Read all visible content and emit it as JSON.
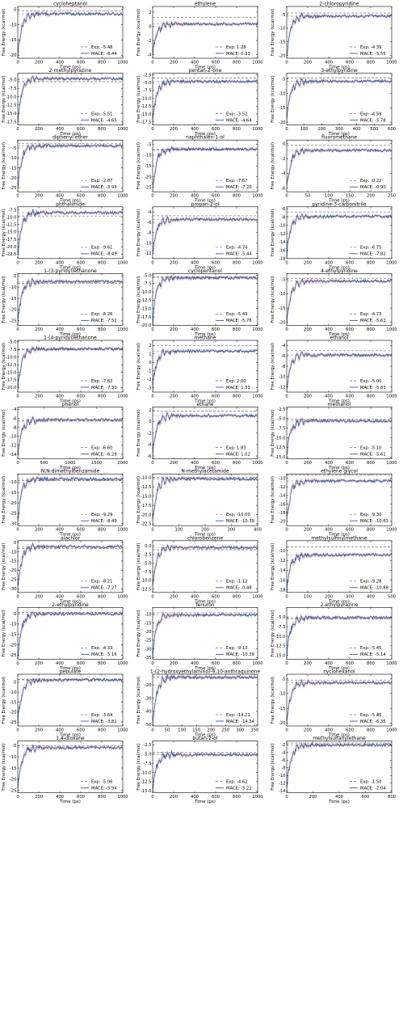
{
  "figure": {
    "xlabel": "Time (ps)",
    "ylabel": "Free Energy (kcal/mol)",
    "exp_prefix": "Exp: ",
    "mace_prefix": "MACE: "
  },
  "colors": {
    "mace_line": "#2b5fa6",
    "mace_band": "#f0a8a8",
    "exp_line": "#6e6e6e",
    "axis": "#000000",
    "text": "#000000"
  },
  "chart_data": [
    {
      "type": "line",
      "title": "cycloheptanol",
      "xlim": [
        0,
        1000
      ],
      "xticks": [
        0,
        200,
        400,
        600,
        800,
        1000
      ],
      "ylim": [
        -21,
        -4
      ],
      "yticks": [
        -20,
        -15,
        -10,
        -5
      ],
      "exp": -5.48,
      "mace": -6.44,
      "series": [
        {
          "name": "Exp: -5.48"
        },
        {
          "name": "MACE: -6.44"
        }
      ]
    },
    {
      "type": "line",
      "title": "ethylene",
      "xlim": [
        0,
        1000
      ],
      "xticks": [
        0,
        200,
        400,
        600,
        800,
        1000
      ],
      "ylim": [
        -4.5,
        2.8
      ],
      "yticks": [
        -4,
        -2,
        0,
        2
      ],
      "exp": 1.28,
      "mace": 0.33,
      "series": [
        {
          "name": "Exp: 1.28"
        },
        {
          "name": "MACE: 0.33"
        }
      ]
    },
    {
      "type": "line",
      "title": "2-chloropyridine",
      "xlim": [
        0,
        1000
      ],
      "xticks": [
        0,
        200,
        400,
        600,
        800,
        1000
      ],
      "ylim": [
        -21,
        -2
      ],
      "yticks": [
        -20,
        -15,
        -10,
        -5
      ],
      "exp": -4.39,
      "mace": -5.55,
      "series": [
        {
          "name": "Exp: -4.39"
        },
        {
          "name": "MACE: -5.55"
        }
      ]
    },
    {
      "type": "line",
      "title": "2-methylpyrazine",
      "xlim": [
        0,
        1000
      ],
      "xticks": [
        0,
        200,
        400,
        600,
        800,
        1000
      ],
      "ylim": [
        -18.5,
        -3
      ],
      "yticks": [
        -17.5,
        -15.0,
        -12.5,
        -10.0,
        -7.5,
        -5.0
      ],
      "exp": -5.51,
      "mace": -4.65,
      "series": [
        {
          "name": "Exp: -5.51"
        },
        {
          "name": "MACE: -4.65"
        }
      ]
    },
    {
      "type": "line",
      "title": "pentan-2-one",
      "xlim": [
        0,
        1000
      ],
      "xticks": [
        0,
        200,
        400,
        600,
        800,
        1000
      ],
      "ylim": [
        -18.5,
        -2
      ],
      "yticks": [
        -17.5,
        -15.0,
        -12.5,
        -10.0,
        -7.5,
        -5.0,
        -2.5
      ],
      "exp": -3.52,
      "mace": -4.64,
      "series": [
        {
          "name": "Exp: -3.52"
        },
        {
          "name": "MACE: -4.64"
        }
      ]
    },
    {
      "type": "line",
      "title": "3-ethylpyridine",
      "xlim": [
        0,
        600
      ],
      "xticks": [
        0,
        100,
        200,
        300,
        400,
        500,
        600
      ],
      "ylim": [
        -21,
        -3
      ],
      "yticks": [
        -20,
        -15,
        -10,
        -5
      ],
      "exp": -4.59,
      "mace": -5.78,
      "series": [
        {
          "name": "Exp: -4.59"
        },
        {
          "name": "MACE: -5.78"
        }
      ]
    },
    {
      "type": "line",
      "title": "diphenyl ether",
      "xlim": [
        0,
        1000
      ],
      "xticks": [
        0,
        200,
        400,
        600,
        800,
        1000
      ],
      "ylim": [
        -27,
        -1
      ],
      "yticks": [
        -25,
        -20,
        -15,
        -10,
        -5
      ],
      "exp": -2.87,
      "mace": -3.93,
      "series": [
        {
          "name": "Exp: -2.87"
        },
        {
          "name": "MACE: -3.93"
        }
      ]
    },
    {
      "type": "line",
      "title": "naphthalen-1-ol",
      "xlim": [
        0,
        1000
      ],
      "xticks": [
        0,
        200,
        400,
        600,
        800,
        1000
      ],
      "ylim": [
        -27,
        -3
      ],
      "yticks": [
        -25,
        -20,
        -15,
        -10,
        -5
      ],
      "exp": -7.67,
      "mace": -7.2,
      "series": [
        {
          "name": "Exp: -7.67"
        },
        {
          "name": "MACE: -7.20"
        }
      ]
    },
    {
      "type": "line",
      "title": "fluoromethane",
      "xlim": [
        0,
        250
      ],
      "xticks": [
        0,
        50,
        100,
        150,
        200,
        250
      ],
      "ylim": [
        -6.5,
        0.5
      ],
      "yticks": [
        -6,
        -4,
        -2,
        0
      ],
      "exp": -0.22,
      "mace": -0.9,
      "series": [
        {
          "name": "Exp: -0.22"
        },
        {
          "name": "MACE: -0.90"
        }
      ]
    },
    {
      "type": "line",
      "title": "phthalimide",
      "xlim": [
        0,
        1000
      ],
      "xticks": [
        0,
        200,
        400,
        600,
        800,
        1000
      ],
      "ylim": [
        -24,
        -6.5
      ],
      "yticks": [
        -22.5,
        -20.0,
        -17.5,
        -15.0,
        -12.5,
        -10.0,
        -7.5
      ],
      "exp": -9.61,
      "mace": -8.49,
      "series": [
        {
          "name": "Exp: -9.61"
        },
        {
          "name": "MACE: -8.49"
        }
      ]
    },
    {
      "type": "line",
      "title": "propan-2-ol",
      "xlim": [
        0,
        1000
      ],
      "xticks": [
        0,
        200,
        400,
        600,
        800,
        1000
      ],
      "ylim": [
        -13,
        -3
      ],
      "yticks": [
        -12,
        -10,
        -8,
        -6,
        -4
      ],
      "exp": -4.74,
      "mace": -5.44,
      "series": [
        {
          "name": "Exp: -4.74"
        },
        {
          "name": "MACE: -5.44"
        }
      ]
    },
    {
      "type": "line",
      "title": "pyridine-3-carbonitrile",
      "xlim": [
        0,
        1000
      ],
      "xticks": [
        0,
        200,
        400,
        600,
        800,
        1000
      ],
      "ylim": [
        -18,
        -5.5
      ],
      "yticks": [
        -18,
        -16,
        -14,
        -12,
        -10,
        -8,
        -6
      ],
      "exp": -6.75,
      "mace": -7.82,
      "series": [
        {
          "name": "Exp: -6.75"
        },
        {
          "name": "MACE: -7.82"
        }
      ]
    },
    {
      "type": "line",
      "title": "1-(3-pyridyl)ethanone",
      "xlim": [
        0,
        1000
      ],
      "xticks": [
        0,
        200,
        400,
        600,
        800,
        1000
      ],
      "ylim": [
        -27,
        -4
      ],
      "yticks": [
        -25,
        -20,
        -15,
        -10,
        -5
      ],
      "exp": -8.26,
      "mace": -7.52,
      "series": [
        {
          "name": "Exp: -8.26"
        },
        {
          "name": "MACE: -7.52"
        }
      ]
    },
    {
      "type": "line",
      "title": "cyclopentanol",
      "xlim": [
        0,
        1000
      ],
      "xticks": [
        0,
        200,
        400,
        600,
        800,
        1000
      ],
      "ylim": [
        -20,
        -4.5
      ],
      "yticks": [
        -20.0,
        -17.5,
        -15.0,
        -12.5,
        -10.0,
        -7.5,
        -5.0
      ],
      "exp": -5.49,
      "mace": -5.76,
      "series": [
        {
          "name": "Exp: -5.49"
        },
        {
          "name": "MACE: -5.76"
        }
      ]
    },
    {
      "type": "line",
      "title": "4-ethylpyridine",
      "xlim": [
        0,
        1000
      ],
      "xticks": [
        0,
        200,
        400,
        600,
        800,
        1000
      ],
      "ylim": [
        -21,
        -3
      ],
      "yticks": [
        -20,
        -15,
        -10,
        -5
      ],
      "exp": -4.73,
      "mace": -5.62,
      "series": [
        {
          "name": "Exp: -4.73"
        },
        {
          "name": "MACE: -5.62"
        }
      ]
    },
    {
      "type": "line",
      "title": "1-(4-pyridyl)ethanone",
      "xlim": [
        0,
        1000
      ],
      "xticks": [
        0,
        200,
        400,
        600,
        800,
        1000
      ],
      "ylim": [
        -21.5,
        -4.5
      ],
      "yticks": [
        -20.0,
        -17.5,
        -15.0,
        -12.5,
        -10.0,
        -7.5,
        -5.0
      ],
      "exp": -7.62,
      "mace": -7.3,
      "series": [
        {
          "name": "Exp: -7.62"
        },
        {
          "name": "MACE: -7.30"
        }
      ]
    },
    {
      "type": "line",
      "title": "methane",
      "xlim": [
        0,
        1000
      ],
      "xticks": [
        0,
        200,
        400,
        600,
        800,
        1000
      ],
      "ylim": [
        -3.5,
        2.6
      ],
      "yticks": [
        -3,
        -2,
        -1,
        0,
        1,
        2
      ],
      "exp": 2.0,
      "mace": 1.33,
      "series": [
        {
          "name": "Exp: 2.00"
        },
        {
          "name": "MACE: 1.33"
        }
      ]
    },
    {
      "type": "line",
      "title": "ethanol",
      "xlim": [
        0,
        1000
      ],
      "xticks": [
        0,
        200,
        400,
        600,
        800,
        1000
      ],
      "ylim": [
        -13,
        -3
      ],
      "yticks": [
        -12,
        -10,
        -8,
        -6,
        -4
      ],
      "exp": -5.0,
      "mace": -5.83,
      "series": [
        {
          "name": "Exp: -5.00"
        },
        {
          "name": "MACE: -5.83"
        }
      ]
    },
    {
      "type": "line",
      "title": "phenol",
      "xlim": [
        0,
        2000
      ],
      "xticks": [
        0,
        500,
        1000,
        1500,
        2000
      ],
      "ylim": [
        -15,
        -3.5
      ],
      "yticks": [
        -14,
        -12,
        -10,
        -8,
        -6,
        -4
      ],
      "exp": -6.6,
      "mace": -6.29,
      "series": [
        {
          "name": "Exp: -6.60"
        },
        {
          "name": "MACE: -6.29"
        }
      ]
    },
    {
      "type": "line",
      "title": "ethane",
      "xlim": [
        0,
        1000
      ],
      "xticks": [
        0,
        200,
        400,
        600,
        800,
        1000
      ],
      "ylim": [
        -6.5,
        2.5
      ],
      "yticks": [
        -6,
        -4,
        -2,
        0,
        2
      ],
      "exp": 1.83,
      "mace": 1.02,
      "series": [
        {
          "name": "Exp: 1.83"
        },
        {
          "name": "MACE: 1.02"
        }
      ]
    },
    {
      "type": "line",
      "title": "methanol",
      "xlim": [
        0,
        1000
      ],
      "xticks": [
        0,
        200,
        400,
        600,
        800,
        1000
      ],
      "ylim": [
        -15.5,
        -2
      ],
      "yticks": [
        -15.0,
        -12.5,
        -10.0,
        -7.5,
        -5.0,
        -2.5
      ],
      "exp": -5.1,
      "mace": -5.61,
      "series": [
        {
          "name": "Exp: -5.10"
        },
        {
          "name": "MACE: -5.61"
        }
      ]
    },
    {
      "type": "line",
      "title": "N,N-dimethylbenzamide",
      "xlim": [
        0,
        1000
      ],
      "xticks": [
        0,
        200,
        400,
        600,
        800,
        1000
      ],
      "ylim": [
        -31,
        -6
      ],
      "yticks": [
        -30,
        -25,
        -20,
        -15,
        -10
      ],
      "exp": -9.29,
      "mace": -8.49,
      "series": [
        {
          "name": "Exp: -9.29"
        },
        {
          "name": "MACE: -8.49"
        }
      ]
    },
    {
      "type": "line",
      "title": "N-methylacetamide",
      "xlim": [
        0,
        400
      ],
      "xticks": [
        0,
        100,
        200,
        300,
        400
      ],
      "ylim": [
        -23,
        -9
      ],
      "yticks": [
        -22.5,
        -20.0,
        -17.5,
        -15.0,
        -12.5,
        -10.0
      ],
      "exp": -10.0,
      "mace": -10.39,
      "series": [
        {
          "name": "Exp: -10.00"
        },
        {
          "name": "MACE: -10.39"
        }
      ]
    },
    {
      "type": "line",
      "title": "ethylene glycol",
      "xlim": [
        0,
        1000
      ],
      "xticks": [
        0,
        200,
        400,
        600,
        800,
        1000
      ],
      "ylim": [
        -21,
        -9
      ],
      "yticks": [
        -20,
        -18,
        -16,
        -14,
        -12,
        -10
      ],
      "exp": -9.3,
      "mace": -10.63,
      "series": [
        {
          "name": "Exp: -9.30"
        },
        {
          "name": "MACE: -10.63"
        }
      ]
    },
    {
      "type": "line",
      "title": "alachlor",
      "xlim": [
        0,
        1000
      ],
      "xticks": [
        0,
        200,
        400,
        600,
        800,
        1000
      ],
      "ylim": [
        -32,
        -4
      ],
      "yticks": [
        -30,
        -25,
        -20,
        -15,
        -10,
        -5
      ],
      "exp": -8.21,
      "mace": -7.27,
      "series": [
        {
          "name": "Exp: -8.21"
        },
        {
          "name": "MACE: -7.27"
        }
      ]
    },
    {
      "type": "line",
      "title": "chlorobenzene",
      "xlim": [
        0,
        1000
      ],
      "xticks": [
        0,
        200,
        400,
        600,
        800,
        1000
      ],
      "ylim": [
        -13.5,
        1.5
      ],
      "yticks": [
        -12.5,
        -10.0,
        -7.5,
        -5.0,
        -2.5,
        0.0
      ],
      "exp": -1.12,
      "mace": -0.48,
      "series": [
        {
          "name": "Exp: -1.12"
        },
        {
          "name": "MACE: -0.48"
        }
      ]
    },
    {
      "type": "line",
      "title": "methylsulfinylmethane",
      "xlim": [
        0,
        500
      ],
      "xticks": [
        0,
        100,
        200,
        300,
        400,
        500
      ],
      "ylim": [
        -18.5,
        -8
      ],
      "yticks": [
        -18,
        -16,
        -14,
        -12,
        -10
      ],
      "exp": -9.28,
      "mace": -10.88,
      "series": [
        {
          "name": "Exp: -9.28"
        },
        {
          "name": "MACE: -10.88"
        }
      ]
    },
    {
      "type": "line",
      "title": "2-ethylpyridine",
      "xlim": [
        0,
        1000
      ],
      "xticks": [
        0,
        200,
        400,
        600,
        800,
        1000
      ],
      "ylim": [
        -27,
        -2
      ],
      "yticks": [
        -25,
        -20,
        -15,
        -10,
        -5
      ],
      "exp": -4.33,
      "mace": -5.16,
      "series": [
        {
          "name": "Exp: -4.33"
        },
        {
          "name": "MACE: -5.16"
        }
      ]
    },
    {
      "type": "line",
      "title": "fenuron",
      "xlim": [
        0,
        1000
      ],
      "xticks": [
        0,
        200,
        400,
        600,
        800,
        1000
      ],
      "ylim": [
        -36,
        -6
      ],
      "yticks": [
        -35,
        -30,
        -25,
        -20,
        -15,
        -10
      ],
      "exp": -9.13,
      "mace": -10.39,
      "series": [
        {
          "name": "Exp: -9.13"
        },
        {
          "name": "MACE: -10.39"
        }
      ]
    },
    {
      "type": "line",
      "title": "2-ethylpyrazine",
      "xlim": [
        0,
        1000
      ],
      "xticks": [
        0,
        200,
        400,
        600,
        800,
        1000
      ],
      "ylim": [
        -16,
        -2.5
      ],
      "yticks": [
        -15.0,
        -12.5,
        -10.0,
        -7.5,
        -5.0
      ],
      "exp": -5.45,
      "mace": -5.14,
      "series": [
        {
          "name": "Exp: -5.45"
        },
        {
          "name": "MACE: -5.14"
        }
      ]
    },
    {
      "type": "line",
      "title": "pebulate",
      "xlim": [
        0,
        1000
      ],
      "xticks": [
        0,
        200,
        400,
        600,
        800,
        1000
      ],
      "ylim": [
        -27,
        -1
      ],
      "yticks": [
        -25,
        -20,
        -15,
        -10,
        -5
      ],
      "exp": -3.64,
      "mace": -3.81,
      "series": [
        {
          "name": "Exp: -3.64"
        },
        {
          "name": "MACE: -3.81"
        }
      ]
    },
    {
      "type": "line",
      "title": "1-(2-hydroxyethylamino)-9,10-anthraquinone",
      "xlim": [
        0,
        360
      ],
      "xticks": [
        0,
        50,
        100,
        150,
        200,
        250,
        300,
        350
      ],
      "ylim": [
        -51,
        -12
      ],
      "yticks": [
        -50,
        -40,
        -30,
        -20
      ],
      "exp": -14.21,
      "mace": -14.34,
      "series": [
        {
          "name": "Exp: -14.21"
        },
        {
          "name": "MACE: -14.34"
        }
      ]
    },
    {
      "type": "line",
      "title": "cyclohexanol",
      "xlim": [
        0,
        1000
      ],
      "xticks": [
        0,
        200,
        400,
        600,
        800,
        1000
      ],
      "ylim": [
        -21,
        -3.5
      ],
      "yticks": [
        -20,
        -15,
        -10,
        -5
      ],
      "exp": -5.46,
      "mace": -6.35,
      "series": [
        {
          "name": "Exp: -5.46"
        },
        {
          "name": "MACE: -6.35"
        }
      ]
    },
    {
      "type": "line",
      "title": "1,4-dioxane",
      "xlim": [
        0,
        1000
      ],
      "xticks": [
        0,
        200,
        400,
        600,
        800,
        1000
      ],
      "ylim": [
        -26,
        -3
      ],
      "yticks": [
        -25,
        -20,
        -15,
        -10,
        -5
      ],
      "exp": -5.06,
      "mace": -5.94,
      "series": [
        {
          "name": "Exp: -5.06"
        },
        {
          "name": "MACE: -5.94"
        }
      ]
    },
    {
      "type": "line",
      "title": "butan-2-ol",
      "xlim": [
        0,
        1000
      ],
      "xticks": [
        0,
        200,
        400,
        600,
        800,
        1000
      ],
      "ylim": [
        -15.5,
        -1.5
      ],
      "yticks": [
        -15.0,
        -12.5,
        -10.0,
        -7.5,
        -5.0,
        -2.5
      ],
      "exp": -4.62,
      "mace": -5.22,
      "series": [
        {
          "name": "Exp: -4.62"
        },
        {
          "name": "MACE: -5.22"
        }
      ]
    },
    {
      "type": "line",
      "title": "methylsulfanylethane",
      "xlim": [
        0,
        800
      ],
      "xticks": [
        0,
        200,
        400,
        600,
        800
      ],
      "ylim": [
        -14.5,
        -1
      ],
      "yticks": [
        -14,
        -12,
        -10,
        -8,
        -6,
        -4,
        -2
      ],
      "exp": -1.5,
      "mace": -2.04,
      "series": [
        {
          "name": "Exp: -1.50"
        },
        {
          "name": "MACE: -2.04"
        }
      ]
    }
  ]
}
